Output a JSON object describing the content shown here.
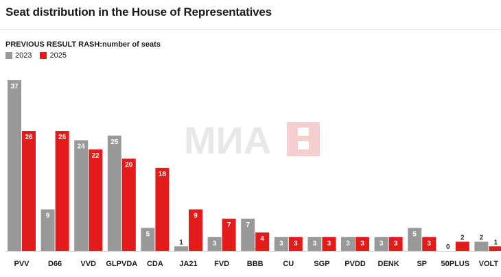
{
  "title": "Seat distribution in the House of Representatives",
  "watermark": "МИА",
  "chart_data": {
    "type": "bar",
    "title": "PREVIOUS RESULT RASH:number of seats",
    "xlabel": "",
    "ylabel": "",
    "ylim": [
      0,
      37
    ],
    "legend_position": "top-left",
    "categories": [
      "PVV",
      "D66",
      "VVD",
      "GLPVDA",
      "CDA",
      "JA21",
      "FVD",
      "BBB",
      "CU",
      "SGP",
      "PVDD",
      "DENK",
      "SP",
      "50PLUS",
      "VOLT"
    ],
    "series": [
      {
        "name": "2023",
        "color": "#999999",
        "values": [
          37,
          9,
          24,
          25,
          5,
          1,
          3,
          7,
          3,
          3,
          3,
          3,
          5,
          0,
          2
        ]
      },
      {
        "name": "2025",
        "color": "#e31b1b",
        "values": [
          26,
          26,
          22,
          20,
          18,
          9,
          7,
          4,
          3,
          3,
          3,
          3,
          3,
          2,
          1
        ]
      }
    ]
  }
}
